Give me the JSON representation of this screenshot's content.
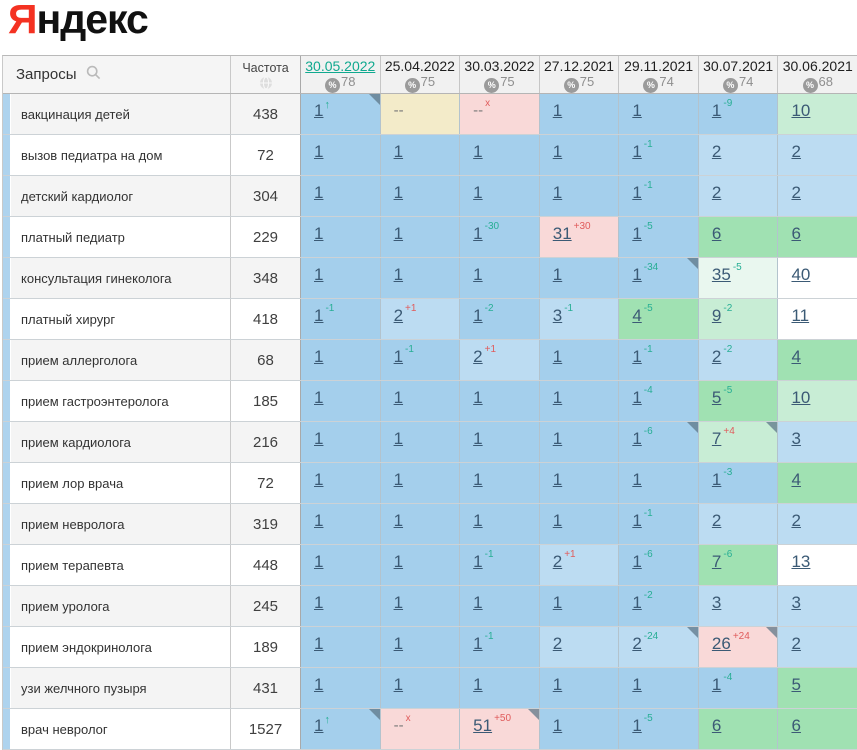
{
  "logo": {
    "first_letter": "Я",
    "rest": "ндекс"
  },
  "icons": {
    "up_arrow_glyph": "↑",
    "percent_glyph": "%"
  },
  "colors": {
    "blue1": "#a4cfec",
    "blue2": "#bcdcf2",
    "green1": "#a0e1b2",
    "green2": "#c8edd5",
    "green3": "#e9f7ef",
    "pink": "#f9d9d8",
    "beige": "#f3ebc9",
    "white": "#ffffff",
    "sup_teal": "#27ae94",
    "sup_red": "#e05c5c",
    "pos_link": "#3b5a75",
    "date_link": "#10a98f",
    "strip_blue": "#aed3ee"
  },
  "table": {
    "queries_header": "Запросы",
    "frequency_header": "Частота",
    "date_columns": [
      {
        "date": "30.05.2022",
        "percent": "78",
        "selected": true
      },
      {
        "date": "25.04.2022",
        "percent": "75",
        "selected": false
      },
      {
        "date": "30.03.2022",
        "percent": "75",
        "selected": false
      },
      {
        "date": "27.12.2021",
        "percent": "75",
        "selected": false
      },
      {
        "date": "29.11.2021",
        "percent": "74",
        "selected": false
      },
      {
        "date": "30.07.2021",
        "percent": "74",
        "selected": false
      },
      {
        "date": "30.06.2021",
        "percent": "68",
        "selected": false
      }
    ],
    "rows": [
      {
        "query": "вакцинация детей",
        "frequency": "438",
        "cells": [
          {
            "v": "1",
            "arrow": true,
            "bg": "blue1",
            "corner": true
          },
          {
            "v": "--",
            "bg": "beige",
            "nolink": true
          },
          {
            "v": "--",
            "sup": "x",
            "sup_color": "red",
            "bg": "pink",
            "nolink": true
          },
          {
            "v": "1",
            "bg": "blue1"
          },
          {
            "v": "1",
            "bg": "blue1"
          },
          {
            "v": "1",
            "sup": "-9",
            "sup_color": "teal",
            "bg": "blue1"
          },
          {
            "v": "10",
            "bg": "green2"
          }
        ]
      },
      {
        "query": "вызов педиатра на дом",
        "frequency": "72",
        "cells": [
          {
            "v": "1",
            "bg": "blue1"
          },
          {
            "v": "1",
            "bg": "blue1"
          },
          {
            "v": "1",
            "bg": "blue1"
          },
          {
            "v": "1",
            "bg": "blue1"
          },
          {
            "v": "1",
            "sup": "-1",
            "sup_color": "teal",
            "bg": "blue1"
          },
          {
            "v": "2",
            "bg": "blue2"
          },
          {
            "v": "2",
            "bg": "blue2"
          }
        ]
      },
      {
        "query": "детский кардиолог",
        "frequency": "304",
        "cells": [
          {
            "v": "1",
            "bg": "blue1"
          },
          {
            "v": "1",
            "bg": "blue1"
          },
          {
            "v": "1",
            "bg": "blue1"
          },
          {
            "v": "1",
            "bg": "blue1"
          },
          {
            "v": "1",
            "sup": "-1",
            "sup_color": "teal",
            "bg": "blue1"
          },
          {
            "v": "2",
            "bg": "blue2"
          },
          {
            "v": "2",
            "bg": "blue2"
          }
        ]
      },
      {
        "query": "платный педиатр",
        "frequency": "229",
        "cells": [
          {
            "v": "1",
            "bg": "blue1"
          },
          {
            "v": "1",
            "bg": "blue1"
          },
          {
            "v": "1",
            "sup": "-30",
            "sup_color": "teal",
            "bg": "blue1"
          },
          {
            "v": "31",
            "sup": "+30",
            "sup_color": "red",
            "bg": "pink"
          },
          {
            "v": "1",
            "sup": "-5",
            "sup_color": "teal",
            "bg": "blue1"
          },
          {
            "v": "6",
            "bg": "green1"
          },
          {
            "v": "6",
            "bg": "green1"
          }
        ]
      },
      {
        "query": "консультация гинеколога",
        "frequency": "348",
        "cells": [
          {
            "v": "1",
            "bg": "blue1"
          },
          {
            "v": "1",
            "bg": "blue1"
          },
          {
            "v": "1",
            "bg": "blue1"
          },
          {
            "v": "1",
            "bg": "blue1"
          },
          {
            "v": "1",
            "sup": "-34",
            "sup_color": "teal",
            "bg": "blue1",
            "corner": true
          },
          {
            "v": "35",
            "sup": "-5",
            "sup_color": "teal",
            "bg": "green3"
          },
          {
            "v": "40",
            "bg": "white"
          }
        ]
      },
      {
        "query": "платный хирург",
        "frequency": "418",
        "cells": [
          {
            "v": "1",
            "sup": "-1",
            "sup_color": "teal",
            "bg": "blue1"
          },
          {
            "v": "2",
            "sup": "+1",
            "sup_color": "red",
            "bg": "blue2"
          },
          {
            "v": "1",
            "sup": "-2",
            "sup_color": "teal",
            "bg": "blue1"
          },
          {
            "v": "3",
            "sup": "-1",
            "sup_color": "teal",
            "bg": "blue2"
          },
          {
            "v": "4",
            "sup": "-5",
            "sup_color": "teal",
            "bg": "green1"
          },
          {
            "v": "9",
            "sup": "-2",
            "sup_color": "teal",
            "bg": "green2"
          },
          {
            "v": "11",
            "bg": "white"
          }
        ]
      },
      {
        "query": "прием аллерголога",
        "frequency": "68",
        "cells": [
          {
            "v": "1",
            "bg": "blue1"
          },
          {
            "v": "1",
            "sup": "-1",
            "sup_color": "teal",
            "bg": "blue1"
          },
          {
            "v": "2",
            "sup": "+1",
            "sup_color": "red",
            "bg": "blue2"
          },
          {
            "v": "1",
            "bg": "blue1"
          },
          {
            "v": "1",
            "sup": "-1",
            "sup_color": "teal",
            "bg": "blue1"
          },
          {
            "v": "2",
            "sup": "-2",
            "sup_color": "teal",
            "bg": "blue2"
          },
          {
            "v": "4",
            "bg": "green1"
          }
        ]
      },
      {
        "query": "прием гастроэнтеролога",
        "frequency": "185",
        "cells": [
          {
            "v": "1",
            "bg": "blue1"
          },
          {
            "v": "1",
            "bg": "blue1"
          },
          {
            "v": "1",
            "bg": "blue1"
          },
          {
            "v": "1",
            "bg": "blue1"
          },
          {
            "v": "1",
            "sup": "-4",
            "sup_color": "teal",
            "bg": "blue1"
          },
          {
            "v": "5",
            "sup": "-5",
            "sup_color": "teal",
            "bg": "green1"
          },
          {
            "v": "10",
            "bg": "green2"
          }
        ]
      },
      {
        "query": "прием кардиолога",
        "frequency": "216",
        "cells": [
          {
            "v": "1",
            "bg": "blue1"
          },
          {
            "v": "1",
            "bg": "blue1"
          },
          {
            "v": "1",
            "bg": "blue1"
          },
          {
            "v": "1",
            "bg": "blue1"
          },
          {
            "v": "1",
            "sup": "-6",
            "sup_color": "teal",
            "bg": "blue1",
            "corner": true
          },
          {
            "v": "7",
            "sup": "+4",
            "sup_color": "red",
            "bg": "green2",
            "corner": true
          },
          {
            "v": "3",
            "bg": "blue2"
          }
        ]
      },
      {
        "query": "прием лор врача",
        "frequency": "72",
        "cells": [
          {
            "v": "1",
            "bg": "blue1"
          },
          {
            "v": "1",
            "bg": "blue1"
          },
          {
            "v": "1",
            "bg": "blue1"
          },
          {
            "v": "1",
            "bg": "blue1"
          },
          {
            "v": "1",
            "bg": "blue1"
          },
          {
            "v": "1",
            "sup": "-3",
            "sup_color": "teal",
            "bg": "blue1"
          },
          {
            "v": "4",
            "bg": "green1"
          }
        ]
      },
      {
        "query": "прием невролога",
        "frequency": "319",
        "cells": [
          {
            "v": "1",
            "bg": "blue1"
          },
          {
            "v": "1",
            "bg": "blue1"
          },
          {
            "v": "1",
            "bg": "blue1"
          },
          {
            "v": "1",
            "bg": "blue1"
          },
          {
            "v": "1",
            "sup": "-1",
            "sup_color": "teal",
            "bg": "blue1"
          },
          {
            "v": "2",
            "bg": "blue2"
          },
          {
            "v": "2",
            "bg": "blue2"
          }
        ]
      },
      {
        "query": "прием терапевта",
        "frequency": "448",
        "cells": [
          {
            "v": "1",
            "bg": "blue1"
          },
          {
            "v": "1",
            "bg": "blue1"
          },
          {
            "v": "1",
            "sup": "-1",
            "sup_color": "teal",
            "bg": "blue1"
          },
          {
            "v": "2",
            "sup": "+1",
            "sup_color": "red",
            "bg": "blue2"
          },
          {
            "v": "1",
            "sup": "-6",
            "sup_color": "teal",
            "bg": "blue1"
          },
          {
            "v": "7",
            "sup": "-6",
            "sup_color": "teal",
            "bg": "green1"
          },
          {
            "v": "13",
            "bg": "white"
          }
        ]
      },
      {
        "query": "прием уролога",
        "frequency": "245",
        "cells": [
          {
            "v": "1",
            "bg": "blue1"
          },
          {
            "v": "1",
            "bg": "blue1"
          },
          {
            "v": "1",
            "bg": "blue1"
          },
          {
            "v": "1",
            "bg": "blue1"
          },
          {
            "v": "1",
            "sup": "-2",
            "sup_color": "teal",
            "bg": "blue1"
          },
          {
            "v": "3",
            "bg": "blue2"
          },
          {
            "v": "3",
            "bg": "blue2"
          }
        ]
      },
      {
        "query": "прием эндокринолога",
        "frequency": "189",
        "cells": [
          {
            "v": "1",
            "bg": "blue1"
          },
          {
            "v": "1",
            "bg": "blue1"
          },
          {
            "v": "1",
            "sup": "-1",
            "sup_color": "teal",
            "bg": "blue1"
          },
          {
            "v": "2",
            "bg": "blue2"
          },
          {
            "v": "2",
            "sup": "-24",
            "sup_color": "teal",
            "bg": "blue2",
            "corner": true
          },
          {
            "v": "26",
            "sup": "+24",
            "sup_color": "red",
            "bg": "pink",
            "corner": true
          },
          {
            "v": "2",
            "bg": "blue2"
          }
        ]
      },
      {
        "query": "узи желчного пузыря",
        "frequency": "431",
        "cells": [
          {
            "v": "1",
            "bg": "blue1"
          },
          {
            "v": "1",
            "bg": "blue1"
          },
          {
            "v": "1",
            "bg": "blue1"
          },
          {
            "v": "1",
            "bg": "blue1"
          },
          {
            "v": "1",
            "bg": "blue1"
          },
          {
            "v": "1",
            "sup": "-4",
            "sup_color": "teal",
            "bg": "blue1"
          },
          {
            "v": "5",
            "bg": "green1"
          }
        ]
      },
      {
        "query": "врач невролог",
        "frequency": "1527",
        "cells": [
          {
            "v": "1",
            "arrow": true,
            "bg": "blue1",
            "corner": true
          },
          {
            "v": "--",
            "sup": "x",
            "sup_color": "red",
            "bg": "pink",
            "nolink": true
          },
          {
            "v": "51",
            "sup": "+50",
            "sup_color": "red",
            "bg": "pink",
            "corner": true
          },
          {
            "v": "1",
            "bg": "blue1"
          },
          {
            "v": "1",
            "sup": "-5",
            "sup_color": "teal",
            "bg": "blue1"
          },
          {
            "v": "6",
            "bg": "green1"
          },
          {
            "v": "6",
            "bg": "green1"
          }
        ]
      }
    ]
  }
}
